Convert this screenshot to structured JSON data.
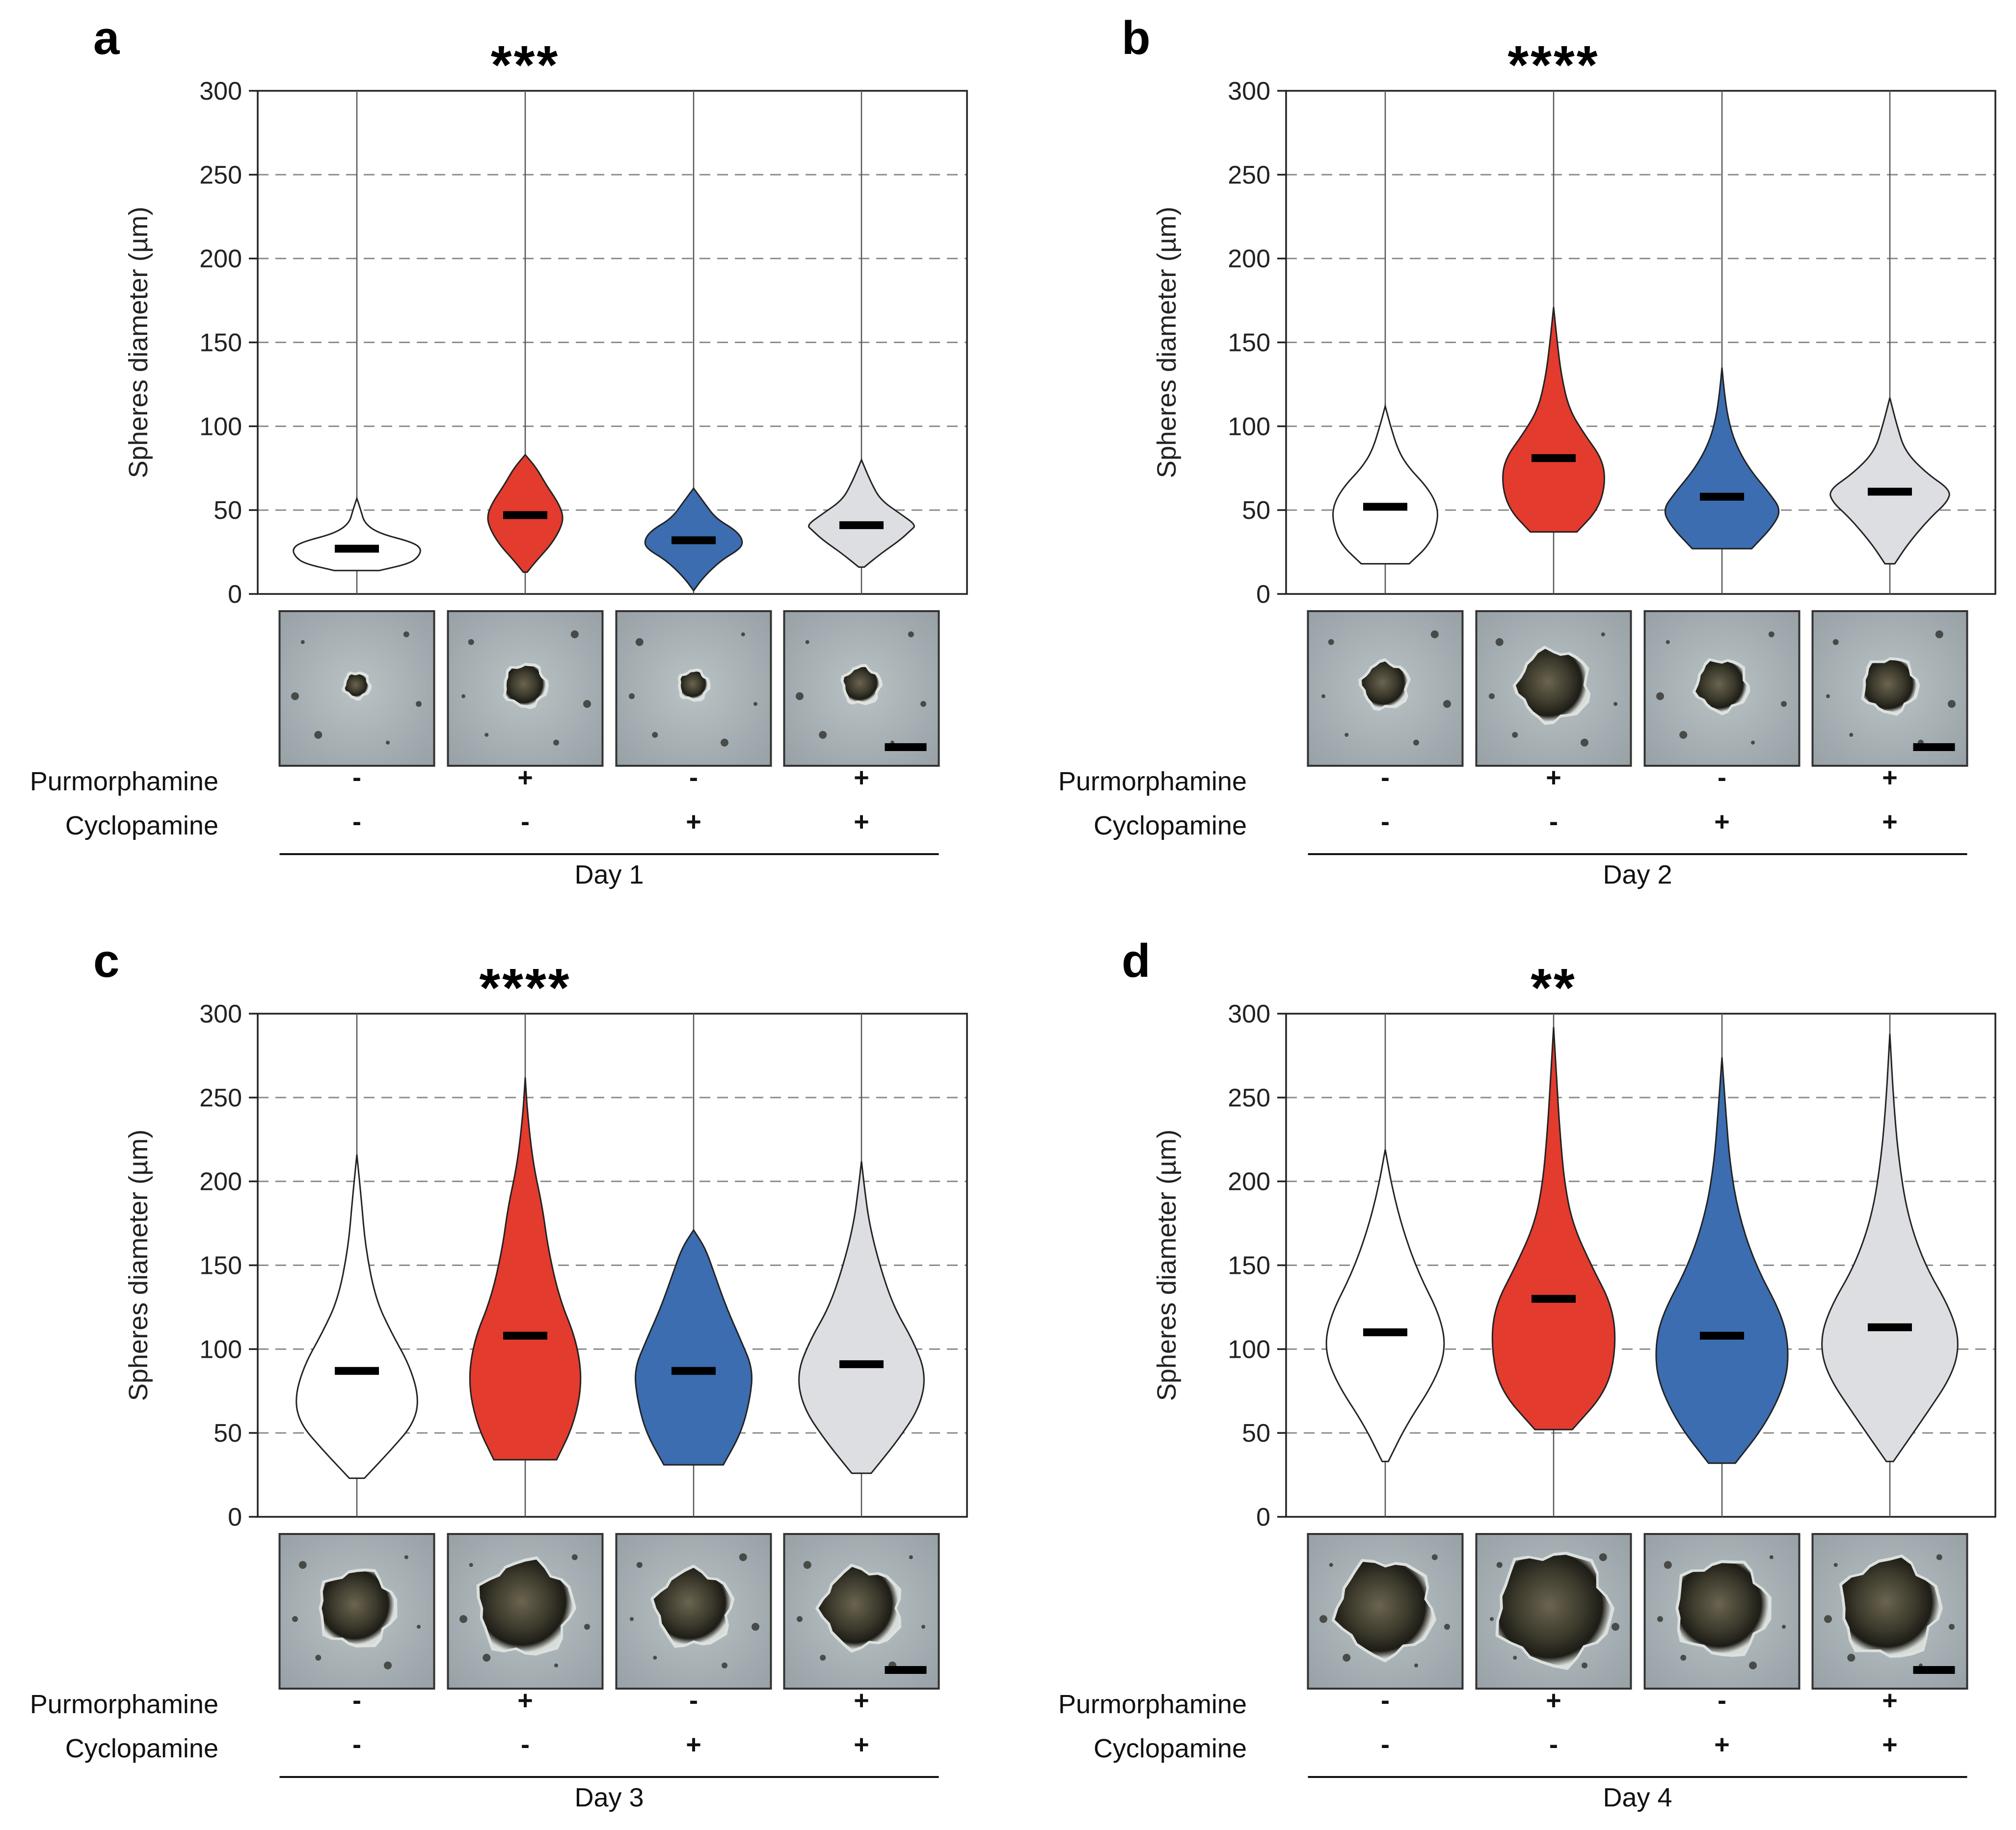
{
  "figure": {
    "row_labels": {
      "purmorphamine": "Purmorphamine",
      "cyclopamine": "Cyclopamine"
    },
    "y_axis_label": "Spheres diameter (µm)",
    "group_colors": [
      "#ffffff",
      "#e33b2e",
      "#3b6db0",
      "#dcdee2"
    ],
    "group_names": [
      "control",
      "purmorphamine",
      "cyclopamine",
      "purmorphamine-cyclopamine"
    ],
    "photo_note": "bright-field sphere micrographs"
  },
  "chart_data": [
    {
      "type": "violin",
      "panel": "a",
      "significance": "***",
      "xlabel": "Day 1",
      "ylabel": "Spheres diameter (µm)",
      "ylim": [
        0,
        300
      ],
      "yticks": [
        0,
        50,
        100,
        150,
        200,
        250,
        300
      ],
      "grid": true,
      "purmorphamine": [
        "-",
        "+",
        "-",
        "+"
      ],
      "cyclopamine": [
        "-",
        "-",
        "+",
        "+"
      ],
      "series": [
        {
          "name": "Purmorphamine - / Cyclopamine -",
          "color": "#ffffff",
          "median": 27,
          "min": 14,
          "max": 57,
          "max_width": 0.85,
          "profile": [
            [
              14,
              0.35
            ],
            [
              18,
              0.8
            ],
            [
              22,
              0.95
            ],
            [
              27,
              1.0
            ],
            [
              31,
              0.85
            ],
            [
              36,
              0.35
            ],
            [
              42,
              0.12
            ],
            [
              50,
              0.06
            ],
            [
              57,
              0.0
            ]
          ]
        },
        {
          "name": "Purmorphamine + / Cyclopamine -",
          "color": "#e33b2e",
          "median": 47,
          "min": 13,
          "max": 83,
          "max_width": 0.5,
          "profile": [
            [
              13,
              0.05
            ],
            [
              20,
              0.3
            ],
            [
              30,
              0.7
            ],
            [
              40,
              0.95
            ],
            [
              47,
              1.0
            ],
            [
              55,
              0.85
            ],
            [
              65,
              0.55
            ],
            [
              75,
              0.3
            ],
            [
              83,
              0.0
            ]
          ]
        },
        {
          "name": "Purmorphamine - / Cyclopamine +",
          "color": "#3b6db0",
          "median": 32,
          "min": 2,
          "max": 63,
          "max_width": 0.65,
          "profile": [
            [
              2,
              0.0
            ],
            [
              10,
              0.2
            ],
            [
              20,
              0.55
            ],
            [
              27,
              0.95
            ],
            [
              32,
              1.0
            ],
            [
              38,
              0.85
            ],
            [
              45,
              0.45
            ],
            [
              55,
              0.2
            ],
            [
              63,
              0.0
            ]
          ]
        },
        {
          "name": "Purmorphamine + / Cyclopamine +",
          "color": "#dcdee2",
          "median": 41,
          "min": 16,
          "max": 80,
          "max_width": 0.72,
          "profile": [
            [
              16,
              0.05
            ],
            [
              24,
              0.35
            ],
            [
              32,
              0.7
            ],
            [
              38,
              0.9
            ],
            [
              41,
              1.0
            ],
            [
              48,
              0.7
            ],
            [
              56,
              0.35
            ],
            [
              66,
              0.18
            ],
            [
              80,
              0.0
            ]
          ]
        }
      ]
    },
    {
      "type": "violin",
      "panel": "b",
      "significance": "****",
      "xlabel": "Day 2",
      "ylabel": "Spheres diameter (µm)",
      "ylim": [
        0,
        300
      ],
      "yticks": [
        0,
        50,
        100,
        150,
        200,
        250,
        300
      ],
      "grid": true,
      "purmorphamine": [
        "-",
        "+",
        "-",
        "+"
      ],
      "cyclopamine": [
        "-",
        "-",
        "+",
        "+"
      ],
      "series": [
        {
          "name": "Purmorphamine - / Cyclopamine -",
          "color": "#ffffff",
          "median": 52,
          "min": 18,
          "max": 112,
          "max_width": 0.7,
          "profile": [
            [
              18,
              0.45
            ],
            [
              30,
              0.85
            ],
            [
              45,
              1.0
            ],
            [
              55,
              0.95
            ],
            [
              65,
              0.75
            ],
            [
              75,
              0.45
            ],
            [
              85,
              0.25
            ],
            [
              100,
              0.1
            ],
            [
              112,
              0.0
            ]
          ]
        },
        {
          "name": "Purmorphamine + / Cyclopamine -",
          "color": "#e33b2e",
          "median": 81,
          "min": 37,
          "max": 171,
          "max_width": 0.68,
          "profile": [
            [
              37,
              0.45
            ],
            [
              50,
              0.85
            ],
            [
              65,
              1.0
            ],
            [
              80,
              0.95
            ],
            [
              95,
              0.6
            ],
            [
              110,
              0.3
            ],
            [
              130,
              0.15
            ],
            [
              150,
              0.07
            ],
            [
              171,
              0.0
            ]
          ]
        },
        {
          "name": "Purmorphamine - / Cyclopamine +",
          "color": "#3b6db0",
          "median": 58,
          "min": 27,
          "max": 135,
          "max_width": 0.78,
          "profile": [
            [
              27,
              0.5
            ],
            [
              40,
              0.85
            ],
            [
              50,
              1.0
            ],
            [
              60,
              0.8
            ],
            [
              75,
              0.45
            ],
            [
              90,
              0.22
            ],
            [
              105,
              0.1
            ],
            [
              120,
              0.04
            ],
            [
              135,
              0.0
            ]
          ]
        },
        {
          "name": "Purmorphamine + / Cyclopamine +",
          "color": "#dcdee2",
          "median": 61,
          "min": 18,
          "max": 117,
          "max_width": 0.8,
          "profile": [
            [
              18,
              0.08
            ],
            [
              30,
              0.3
            ],
            [
              45,
              0.65
            ],
            [
              55,
              0.95
            ],
            [
              62,
              1.0
            ],
            [
              72,
              0.6
            ],
            [
              85,
              0.25
            ],
            [
              100,
              0.12
            ],
            [
              117,
              0.0
            ]
          ]
        }
      ]
    },
    {
      "type": "violin",
      "panel": "c",
      "significance": "****",
      "xlabel": "Day 3",
      "ylabel": "Spheres diameter (µm)",
      "ylim": [
        0,
        300
      ],
      "yticks": [
        0,
        50,
        100,
        150,
        200,
        250,
        300
      ],
      "grid": true,
      "purmorphamine": [
        "-",
        "+",
        "-",
        "+"
      ],
      "cyclopamine": [
        "-",
        "-",
        "+",
        "+"
      ],
      "series": [
        {
          "name": "Purmorphamine - / Cyclopamine -",
          "color": "#ffffff",
          "median": 87,
          "min": 23,
          "max": 216,
          "max_width": 0.82,
          "profile": [
            [
              23,
              0.12
            ],
            [
              40,
              0.55
            ],
            [
              55,
              0.9
            ],
            [
              70,
              1.0
            ],
            [
              90,
              0.85
            ],
            [
              110,
              0.55
            ],
            [
              130,
              0.3
            ],
            [
              160,
              0.14
            ],
            [
              190,
              0.07
            ],
            [
              216,
              0.0
            ]
          ]
        },
        {
          "name": "Purmorphamine + / Cyclopamine -",
          "color": "#e33b2e",
          "median": 108,
          "min": 34,
          "max": 262,
          "max_width": 0.75,
          "profile": [
            [
              34,
              0.55
            ],
            [
              55,
              0.85
            ],
            [
              80,
              1.0
            ],
            [
              105,
              0.9
            ],
            [
              130,
              0.6
            ],
            [
              160,
              0.4
            ],
            [
              185,
              0.3
            ],
            [
              210,
              0.14
            ],
            [
              240,
              0.04
            ],
            [
              262,
              0.0
            ]
          ]
        },
        {
          "name": "Purmorphamine - / Cyclopamine +",
          "color": "#3b6db0",
          "median": 87,
          "min": 31,
          "max": 171,
          "max_width": 0.78,
          "profile": [
            [
              31,
              0.5
            ],
            [
              50,
              0.8
            ],
            [
              70,
              0.95
            ],
            [
              88,
              1.0
            ],
            [
              105,
              0.8
            ],
            [
              125,
              0.55
            ],
            [
              145,
              0.35
            ],
            [
              160,
              0.2
            ],
            [
              171,
              0.0
            ]
          ]
        },
        {
          "name": "Purmorphamine + / Cyclopamine +",
          "color": "#dcdee2",
          "median": 91,
          "min": 26,
          "max": 212,
          "max_width": 0.85,
          "profile": [
            [
              26,
              0.15
            ],
            [
              45,
              0.55
            ],
            [
              65,
              0.9
            ],
            [
              85,
              1.0
            ],
            [
              105,
              0.8
            ],
            [
              125,
              0.5
            ],
            [
              150,
              0.28
            ],
            [
              175,
              0.12
            ],
            [
              195,
              0.05
            ],
            [
              212,
              0.0
            ]
          ]
        }
      ]
    },
    {
      "type": "violin",
      "panel": "d",
      "significance": "**",
      "xlabel": "Day 4",
      "ylabel": "Spheres diameter (µm)",
      "ylim": [
        0,
        300
      ],
      "yticks": [
        0,
        50,
        100,
        150,
        200,
        250,
        300
      ],
      "grid": true,
      "purmorphamine": [
        "-",
        "+",
        "-",
        "+"
      ],
      "cyclopamine": [
        "-",
        "-",
        "+",
        "+"
      ],
      "series": [
        {
          "name": "Purmorphamine - / Cyclopamine -",
          "color": "#ffffff",
          "median": 110,
          "min": 33,
          "max": 219,
          "max_width": 0.8,
          "profile": [
            [
              33,
              0.05
            ],
            [
              55,
              0.35
            ],
            [
              80,
              0.8
            ],
            [
              100,
              1.0
            ],
            [
              120,
              0.9
            ],
            [
              145,
              0.55
            ],
            [
              170,
              0.3
            ],
            [
              195,
              0.12
            ],
            [
              219,
              0.0
            ]
          ]
        },
        {
          "name": "Purmorphamine + / Cyclopamine -",
          "color": "#e33b2e",
          "median": 130,
          "min": 52,
          "max": 292,
          "max_width": 0.82,
          "profile": [
            [
              52,
              0.3
            ],
            [
              75,
              0.85
            ],
            [
              100,
              1.0
            ],
            [
              125,
              0.95
            ],
            [
              150,
              0.6
            ],
            [
              175,
              0.3
            ],
            [
              200,
              0.17
            ],
            [
              230,
              0.1
            ],
            [
              260,
              0.05
            ],
            [
              292,
              0.0
            ]
          ]
        },
        {
          "name": "Purmorphamine - / Cyclopamine +",
          "color": "#3b6db0",
          "median": 108,
          "min": 32,
          "max": 274,
          "max_width": 0.88,
          "profile": [
            [
              32,
              0.2
            ],
            [
              55,
              0.65
            ],
            [
              80,
              0.95
            ],
            [
              100,
              1.0
            ],
            [
              120,
              0.9
            ],
            [
              150,
              0.5
            ],
            [
              180,
              0.25
            ],
            [
              210,
              0.12
            ],
            [
              240,
              0.06
            ],
            [
              274,
              0.0
            ]
          ]
        },
        {
          "name": "Purmorphamine + / Cyclopamine +",
          "color": "#dcdee2",
          "median": 113,
          "min": 33,
          "max": 288,
          "max_width": 0.92,
          "profile": [
            [
              33,
              0.05
            ],
            [
              60,
              0.5
            ],
            [
              85,
              0.9
            ],
            [
              105,
              1.0
            ],
            [
              125,
              0.85
            ],
            [
              150,
              0.5
            ],
            [
              180,
              0.25
            ],
            [
              215,
              0.12
            ],
            [
              250,
              0.05
            ],
            [
              288,
              0.0
            ]
          ]
        }
      ]
    }
  ]
}
